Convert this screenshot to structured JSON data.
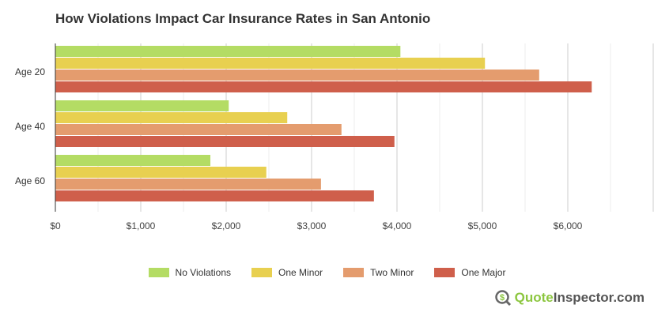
{
  "chart_data": {
    "type": "bar",
    "orientation": "horizontal",
    "title": "How Violations Impact Car Insurance Rates in San Antonio",
    "categories": [
      "Age 20",
      "Age 40",
      "Age 60"
    ],
    "series": [
      {
        "name": "No Violations",
        "color": "#b4dc64",
        "values": [
          4040,
          2030,
          1815
        ]
      },
      {
        "name": "One Minor",
        "color": "#e8d050",
        "values": [
          5030,
          2715,
          2470
        ]
      },
      {
        "name": "Two Minor",
        "color": "#e49c6e",
        "values": [
          5665,
          3350,
          3110
        ]
      },
      {
        "name": "One Major",
        "color": "#cf5f4b",
        "values": [
          6280,
          3970,
          3730
        ]
      }
    ],
    "xlim": [
      0,
      7000
    ],
    "xticks": [
      0,
      1000,
      2000,
      3000,
      4000,
      5000,
      6000
    ],
    "xtick_labels": [
      "$0",
      "$1,000",
      "$2,000",
      "$3,000",
      "$4,000",
      "$5,000",
      "$6,000"
    ],
    "grid": true,
    "legend_position": "bottom"
  },
  "branding": {
    "logo_part1": "Quote",
    "logo_part2": "Inspector.com"
  }
}
